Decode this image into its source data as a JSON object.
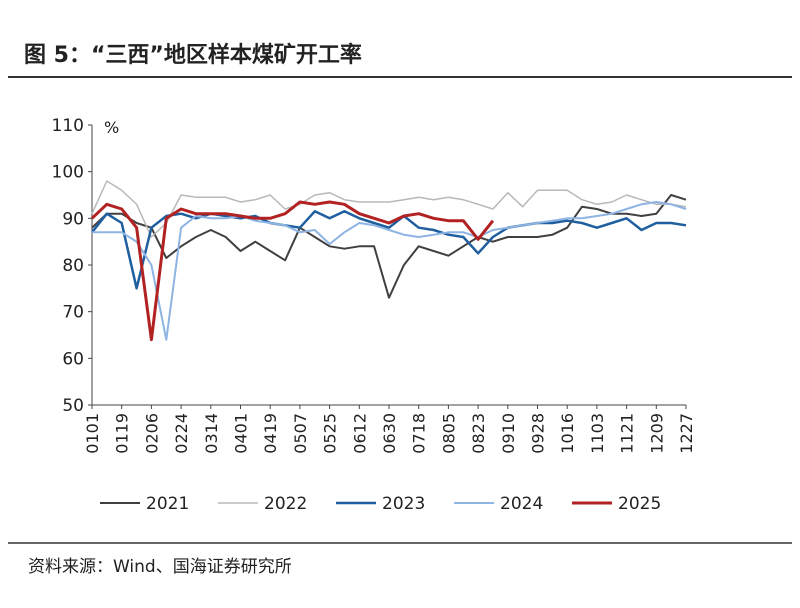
{
  "chart_data": {
    "type": "line",
    "title": "图 5：“三西”地区样本煤矿开工率",
    "y_label": "%",
    "source": "资料来源：Wind、国海证券研究所",
    "categories": [
      "0101",
      null,
      "0119",
      null,
      "0206",
      null,
      "0224",
      null,
      "0314",
      null,
      "0401",
      null,
      "0419",
      null,
      "0507",
      null,
      "0525",
      null,
      "0612",
      null,
      "0630",
      null,
      "0718",
      null,
      "0805",
      null,
      "0823",
      null,
      "0910",
      null,
      "0928",
      null,
      "1016",
      null,
      "1103",
      null,
      "1121",
      null,
      "1209",
      null,
      "1227"
    ],
    "ylim": [
      50,
      110
    ],
    "yticks": [
      50,
      60,
      70,
      80,
      90,
      100,
      110
    ],
    "grid": false,
    "legend": "bottom",
    "series": [
      {
        "name": "2021",
        "color": "#404040",
        "width": 2,
        "values": [
          88,
          91,
          91,
          89,
          88,
          81.5,
          84,
          86,
          87.5,
          86,
          83,
          85,
          83,
          81,
          88,
          86,
          84,
          83.5,
          84,
          84,
          73,
          80,
          84,
          83,
          82,
          84,
          86,
          85,
          86,
          86,
          86,
          86.5,
          88,
          92.5,
          92,
          91,
          91,
          90.5,
          91,
          95,
          94
        ]
      },
      {
        "name": "2022",
        "color": "#b8b8b8",
        "width": 1.5,
        "values": [
          91,
          98,
          96,
          93,
          86,
          89,
          95,
          94.5,
          94.5,
          94.5,
          93.5,
          94,
          95,
          92,
          93,
          95,
          95.5,
          94,
          93.5,
          93.5,
          93.5,
          94,
          94.5,
          94,
          94.5,
          94,
          93,
          92,
          95.5,
          92.5,
          96,
          96,
          96,
          94,
          93,
          93.5,
          95,
          94,
          93,
          93,
          92.5
        ]
      },
      {
        "name": "2023",
        "color": "#1f5fa0",
        "width": 2.5,
        "values": [
          87,
          91,
          89,
          75,
          88,
          90.5,
          91,
          90,
          91,
          90.5,
          90,
          90.5,
          89,
          88.5,
          88,
          91.5,
          90,
          91.5,
          90,
          89,
          88,
          90.5,
          88,
          87.5,
          86.5,
          86,
          82.5,
          86,
          88,
          88.5,
          89,
          89,
          89.5,
          89,
          88,
          89,
          90,
          87.5,
          89,
          89,
          88.5
        ]
      },
      {
        "name": "2024",
        "color": "#8db4e2",
        "width": 2,
        "values": [
          87,
          87,
          87,
          85,
          80,
          64,
          88,
          90.5,
          90,
          90,
          90.5,
          89.5,
          89,
          88.5,
          87,
          87.5,
          84.5,
          87,
          89,
          88.5,
          87.5,
          86.5,
          86,
          86.5,
          87,
          87,
          86,
          87.5,
          88,
          88.5,
          89,
          89.5,
          90,
          90,
          90.5,
          91,
          92,
          93,
          93.5,
          93,
          92
        ]
      },
      {
        "name": "2025",
        "color": "#b22222",
        "width": 3,
        "values": [
          90,
          93,
          92,
          88,
          64,
          90,
          92,
          91,
          91,
          91,
          90.5,
          90,
          90,
          91,
          93.5,
          93,
          93.5,
          93,
          91,
          90,
          89,
          90.5,
          91,
          90,
          89.5,
          89.5,
          85.5,
          89.5,
          null,
          null,
          null,
          null,
          null,
          null,
          null,
          null,
          null,
          null,
          null,
          null,
          null
        ]
      }
    ]
  }
}
